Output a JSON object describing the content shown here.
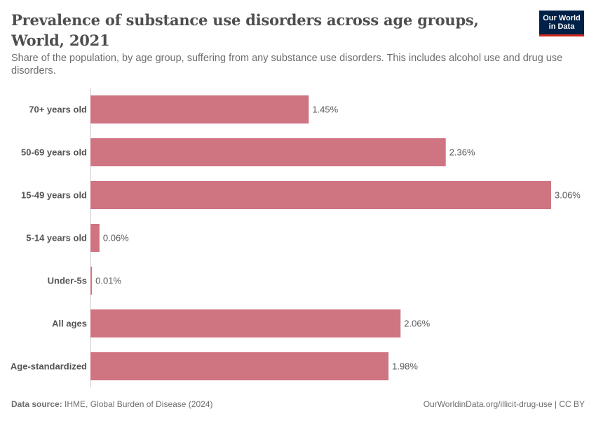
{
  "title": "Prevalence of substance use disorders across age groups, World, 2021",
  "subtitle": "Share of the population, by age group, suffering from any substance use disorders. This includes alcohol use and drug use disorders.",
  "logo": {
    "line1": "Our World",
    "line2": "in Data"
  },
  "footer": {
    "source_label": "Data source:",
    "source_text": "IHME, Global Burden of Disease (2024)",
    "right_text": "OurWorldinData.org/illicit-drug-use | CC BY"
  },
  "colors": {
    "bar": "#cf7481",
    "axis": "#cccccc",
    "label": "#555555",
    "value": "#5b5b5b"
  },
  "chart_data": {
    "type": "bar",
    "orientation": "horizontal",
    "title": "Prevalence of substance use disorders across age groups, World, 2021",
    "categories": [
      "70+ years old",
      "50-69 years old",
      "15-49 years old",
      "5-14 years old",
      "Under-5s",
      "All ages",
      "Age-standardized"
    ],
    "values": [
      1.45,
      2.36,
      3.06,
      0.06,
      0.01,
      2.06,
      1.98
    ],
    "value_labels": [
      "1.45%",
      "2.36%",
      "3.06%",
      "0.06%",
      "0.01%",
      "2.06%",
      "1.98%"
    ],
    "unit": "%",
    "xlim": [
      0,
      3.06
    ],
    "grid": false
  }
}
